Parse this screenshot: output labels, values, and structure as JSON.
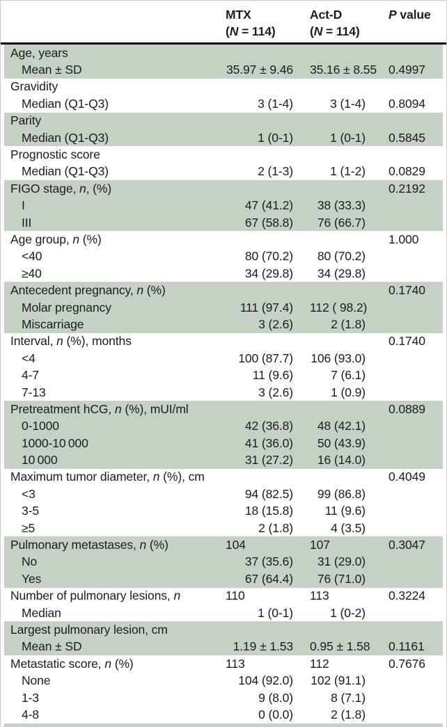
{
  "colors": {
    "stripe": "#c4d1c4",
    "rule": "#000000",
    "text": "#1c1c1c",
    "border": "#cccccc"
  },
  "table": {
    "header": {
      "label": "",
      "mtx_lines": [
        "MTX",
        "(*N* = 114)"
      ],
      "actd_lines": [
        "Act-D",
        "(*N* = 114)"
      ],
      "p_lines": [
        "*P* value"
      ]
    },
    "groups": [
      {
        "shaded": true,
        "rows": [
          {
            "label": "Age, years"
          },
          {
            "label": "Mean ± SD",
            "indent": true,
            "mtx": "35.97 ± 9.46",
            "actd": "35.16 ± 8.55",
            "p": "0.4997"
          }
        ]
      },
      {
        "shaded": false,
        "rows": [
          {
            "label": "Gravidity"
          },
          {
            "label": "Median (Q1-Q3)",
            "indent": true,
            "mtx": "3 (1-4)",
            "actd": "3 (1-4)",
            "p": "0.8094"
          }
        ]
      },
      {
        "shaded": true,
        "rows": [
          {
            "label": "Parity"
          },
          {
            "label": "Median (Q1-Q3)",
            "indent": true,
            "mtx": "1 (0-1)",
            "actd": "1 (0-1)",
            "p": "0.5845"
          }
        ]
      },
      {
        "shaded": false,
        "rows": [
          {
            "label": "Prognostic score"
          },
          {
            "label": "Median (Q1-Q3)",
            "indent": true,
            "mtx": "2 (1-3)",
            "actd": "1 (1-2)",
            "p": "0.0829"
          }
        ]
      },
      {
        "shaded": true,
        "rows": [
          {
            "label": "FIGO stage, *n*, (%)",
            "p": "0.2192"
          },
          {
            "label": "I",
            "indent": true,
            "mtx": "47 (41.2)",
            "actd": "38 (33.3)"
          },
          {
            "label": "III",
            "indent": true,
            "mtx": "67 (58.8)",
            "actd": "76 (66.7)"
          }
        ]
      },
      {
        "shaded": false,
        "rows": [
          {
            "label": "Age group, *n* (%)",
            "p": "1.000"
          },
          {
            "label": "<40",
            "indent": true,
            "mtx": "80 (70.2)",
            "actd": "80 (70.2)"
          },
          {
            "label": "≥40",
            "indent": true,
            "mtx": "34 (29.8)",
            "actd": "34 (29.8)"
          }
        ]
      },
      {
        "shaded": true,
        "rows": [
          {
            "label": "Antecedent pregnancy, *n* (%)",
            "p": "0.1740"
          },
          {
            "label": "Molar pregnancy",
            "indent": true,
            "mtx": "111 (97.4)",
            "actd": "112 ( 98.2)"
          },
          {
            "label": "Miscarriage",
            "indent": true,
            "mtx": "3 (2.6)",
            "actd": "2 (1.8)"
          }
        ]
      },
      {
        "shaded": false,
        "rows": [
          {
            "label": "Interval, *n* (%), months",
            "p": "0.1740"
          },
          {
            "label": "<4",
            "indent": true,
            "mtx": "100 (87.7)",
            "actd": "106 (93.0)"
          },
          {
            "label": "4-7",
            "indent": true,
            "mtx": "11 (9.6)",
            "actd": "7 (6.1)"
          },
          {
            "label": "7-13",
            "indent": true,
            "mtx": "3 (2.6)",
            "actd": "1 (0.9)"
          }
        ]
      },
      {
        "shaded": true,
        "rows": [
          {
            "label": "Pretreatment hCG, *n* (%), mUI/ml",
            "p": "0.0889"
          },
          {
            "label": "0-1000",
            "indent": true,
            "mtx": "42 (36.8)",
            "actd": "48 (42.1)"
          },
          {
            "label": "1000-10 000",
            "indent": true,
            "mtx": "41 (36.0)",
            "actd": "50 (43.9)"
          },
          {
            "label": "10 000",
            "indent": true,
            "mtx": "31 (27.2)",
            "actd": "16 (14.0)"
          }
        ]
      },
      {
        "shaded": false,
        "rows": [
          {
            "label": "Maximum tumor diameter, *n* (%), cm",
            "p": "0.4049"
          },
          {
            "label": "<3",
            "indent": true,
            "mtx": "94 (82.5)",
            "actd": "99 (86.8)"
          },
          {
            "label": "3-5",
            "indent": true,
            "mtx": "18 (15.8)",
            "actd": "11 (9.6)"
          },
          {
            "label": "≥5",
            "indent": true,
            "mtx": "2 (1.8)",
            "actd": "4 (3.5)"
          }
        ]
      },
      {
        "shaded": true,
        "rows": [
          {
            "label": "Pulmonary metastases, *n* (%)",
            "mtx": "104",
            "actd": "107",
            "p": "0.3047",
            "count_left": true
          },
          {
            "label": "No",
            "indent": true,
            "mtx": "37 (35.6)",
            "actd": "31 (29.0)"
          },
          {
            "label": "Yes",
            "indent": true,
            "mtx": "67 (64.4)",
            "actd": "76 (71.0)"
          }
        ]
      },
      {
        "shaded": false,
        "rows": [
          {
            "label": "Number of pulmonary lesions, *n*",
            "mtx": "110",
            "actd": "113",
            "p": "0.3224",
            "count_left": true
          },
          {
            "label": "Median",
            "indent": true,
            "mtx": "1 (0-1)",
            "actd": "1 (0-2)"
          }
        ]
      },
      {
        "shaded": true,
        "rows": [
          {
            "label": "Largest pulmonary lesion, cm"
          },
          {
            "label": "Mean ± SD",
            "indent": true,
            "mtx": "1.19 ± 1.53",
            "actd": "0.95 ± 1.58",
            "p": "0.1161"
          }
        ]
      },
      {
        "shaded": false,
        "rows": [
          {
            "label": "Metastatic score, *n* (%)",
            "mtx": "113",
            "actd": "112",
            "p": "0.7676",
            "count_left": true
          },
          {
            "label": "None",
            "indent": true,
            "mtx": "104 (92.0)",
            "actd": "102 (91.1)"
          },
          {
            "label": "1-3",
            "indent": true,
            "mtx": "9 (8.0)",
            "actd": "8 (7.1)"
          },
          {
            "label": "4-8",
            "indent": true,
            "mtx": "0 (0.0)",
            "actd": "2 (1.8)"
          }
        ]
      }
    ]
  }
}
